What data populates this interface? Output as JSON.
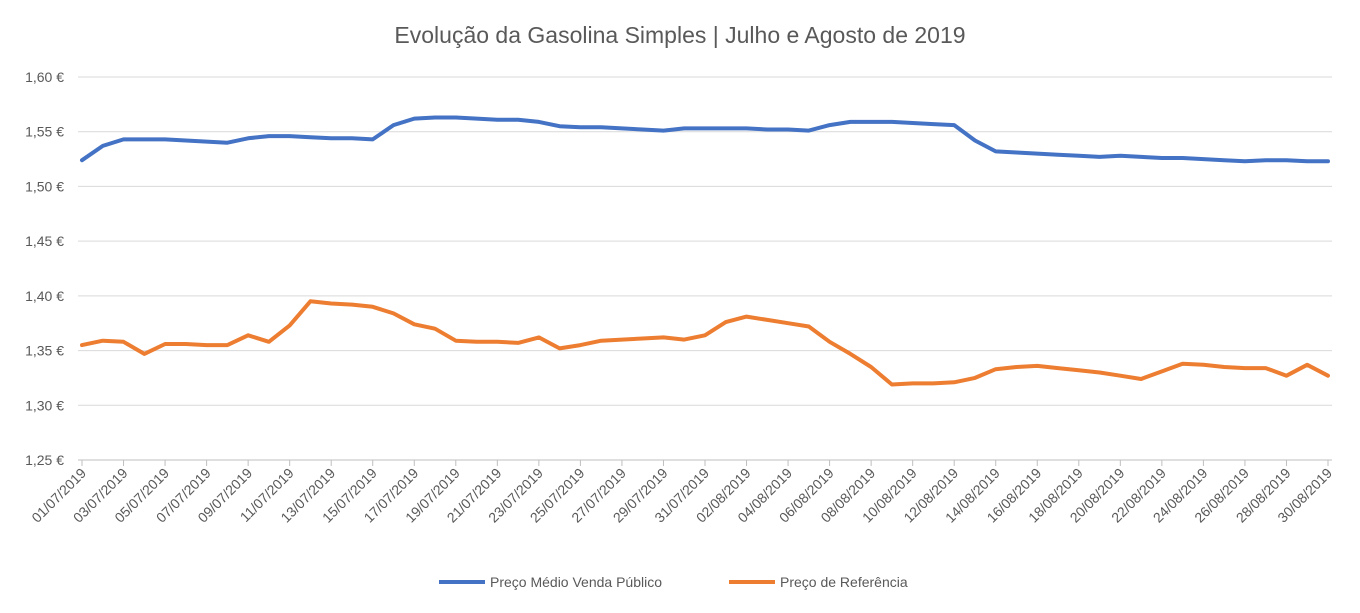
{
  "chart_data": {
    "type": "line",
    "title": "Evolução da Gasolina Simples | Julho e Agosto de 2019",
    "xlabel": "",
    "ylabel": "",
    "ylim": [
      1.25,
      1.6
    ],
    "y_ticks": [
      "1,25 €",
      "1,30 €",
      "1,35 €",
      "1,40 €",
      "1,45 €",
      "1,50 €",
      "1,55 €",
      "1,60 €"
    ],
    "y_tick_values": [
      1.25,
      1.3,
      1.35,
      1.4,
      1.45,
      1.5,
      1.55,
      1.6
    ],
    "x_labels": [
      "01/07/2019",
      "03/07/2019",
      "05/07/2019",
      "07/07/2019",
      "09/07/2019",
      "11/07/2019",
      "13/07/2019",
      "15/07/2019",
      "17/07/2019",
      "19/07/2019",
      "21/07/2019",
      "23/07/2019",
      "25/07/2019",
      "27/07/2019",
      "29/07/2019",
      "31/07/2019",
      "02/08/2019",
      "04/08/2019",
      "06/08/2019",
      "08/08/2019",
      "10/08/2019",
      "12/08/2019",
      "14/08/2019",
      "16/08/2019",
      "18/08/2019",
      "20/08/2019",
      "22/08/2019",
      "24/08/2019",
      "26/08/2019",
      "28/08/2019",
      "30/08/2019"
    ],
    "x_label_day_index": [
      0,
      2,
      4,
      6,
      8,
      10,
      12,
      14,
      16,
      18,
      20,
      22,
      24,
      26,
      28,
      30,
      32,
      34,
      36,
      38,
      40,
      42,
      44,
      46,
      48,
      50,
      52,
      54,
      56,
      58,
      60
    ],
    "grid": true,
    "legend_position": "bottom",
    "series": [
      {
        "name": "Preço Médio Venda Público",
        "color": "#4472C4",
        "points": [
          [
            0,
            1.524
          ],
          [
            1,
            1.537
          ],
          [
            2,
            1.543
          ],
          [
            3,
            1.543
          ],
          [
            4,
            1.543
          ],
          [
            5,
            1.542
          ],
          [
            6,
            1.541
          ],
          [
            7,
            1.54
          ],
          [
            8,
            1.544
          ],
          [
            9,
            1.546
          ],
          [
            10,
            1.546
          ],
          [
            11,
            1.545
          ],
          [
            12,
            1.544
          ],
          [
            13,
            1.544
          ],
          [
            14,
            1.543
          ],
          [
            15,
            1.556
          ],
          [
            16,
            1.562
          ],
          [
            17,
            1.563
          ],
          [
            18,
            1.563
          ],
          [
            19,
            1.562
          ],
          [
            20,
            1.561
          ],
          [
            21,
            1.561
          ],
          [
            22,
            1.559
          ],
          [
            23,
            1.555
          ],
          [
            24,
            1.554
          ],
          [
            25,
            1.554
          ],
          [
            26,
            1.553
          ],
          [
            27,
            1.552
          ],
          [
            28,
            1.551
          ],
          [
            29,
            1.553
          ],
          [
            30,
            1.553
          ],
          [
            31,
            1.553
          ],
          [
            32,
            1.553
          ],
          [
            33,
            1.552
          ],
          [
            34,
            1.552
          ],
          [
            35,
            1.551
          ],
          [
            36,
            1.556
          ],
          [
            37,
            1.559
          ],
          [
            38,
            1.559
          ],
          [
            39,
            1.559
          ],
          [
            40,
            1.558
          ],
          [
            41,
            1.557
          ],
          [
            42,
            1.556
          ],
          [
            43,
            1.542
          ],
          [
            44,
            1.532
          ],
          [
            45,
            1.531
          ],
          [
            46,
            1.53
          ],
          [
            47,
            1.529
          ],
          [
            48,
            1.528
          ],
          [
            49,
            1.527
          ],
          [
            50,
            1.528
          ],
          [
            51,
            1.527
          ],
          [
            52,
            1.526
          ],
          [
            53,
            1.526
          ],
          [
            54,
            1.525
          ],
          [
            55,
            1.524
          ],
          [
            56,
            1.523
          ],
          [
            57,
            1.524
          ],
          [
            58,
            1.524
          ],
          [
            59,
            1.523
          ],
          [
            60,
            1.523
          ]
        ]
      },
      {
        "name": "Preço de Referência",
        "color": "#ED7D31",
        "points": [
          [
            0,
            1.355
          ],
          [
            1,
            1.359
          ],
          [
            2,
            1.358
          ],
          [
            3,
            1.347
          ],
          [
            4,
            1.356
          ],
          [
            5,
            1.356
          ],
          [
            6,
            1.355
          ],
          [
            7,
            1.355
          ],
          [
            8,
            1.364
          ],
          [
            9,
            1.358
          ],
          [
            10,
            1.373
          ],
          [
            11,
            1.395
          ],
          [
            12,
            1.393
          ],
          [
            13,
            1.392
          ],
          [
            14,
            1.39
          ],
          [
            15,
            1.384
          ],
          [
            16,
            1.374
          ],
          [
            17,
            1.37
          ],
          [
            18,
            1.359
          ],
          [
            19,
            1.358
          ],
          [
            20,
            1.358
          ],
          [
            21,
            1.357
          ],
          [
            22,
            1.362
          ],
          [
            23,
            1.352
          ],
          [
            24,
            1.355
          ],
          [
            25,
            1.359
          ],
          [
            26,
            1.36
          ],
          [
            27,
            1.361
          ],
          [
            28,
            1.362
          ],
          [
            29,
            1.36
          ],
          [
            30,
            1.364
          ],
          [
            31,
            1.376
          ],
          [
            32,
            1.381
          ],
          [
            33,
            1.378
          ],
          [
            34,
            1.375
          ],
          [
            35,
            1.372
          ],
          [
            36,
            1.358
          ],
          [
            37,
            1.347
          ],
          [
            38,
            1.335
          ],
          [
            39,
            1.319
          ],
          [
            40,
            1.32
          ],
          [
            41,
            1.32
          ],
          [
            42,
            1.321
          ],
          [
            43,
            1.325
          ],
          [
            44,
            1.333
          ],
          [
            45,
            1.335
          ],
          [
            46,
            1.336
          ],
          [
            47,
            1.334
          ],
          [
            48,
            1.332
          ],
          [
            49,
            1.33
          ],
          [
            50,
            1.327
          ],
          [
            51,
            1.324
          ],
          [
            52,
            1.331
          ],
          [
            53,
            1.338
          ],
          [
            54,
            1.337
          ],
          [
            55,
            1.335
          ],
          [
            56,
            1.334
          ],
          [
            57,
            1.334
          ],
          [
            58,
            1.327
          ],
          [
            59,
            1.337
          ],
          [
            60,
            1.327
          ]
        ]
      }
    ]
  }
}
